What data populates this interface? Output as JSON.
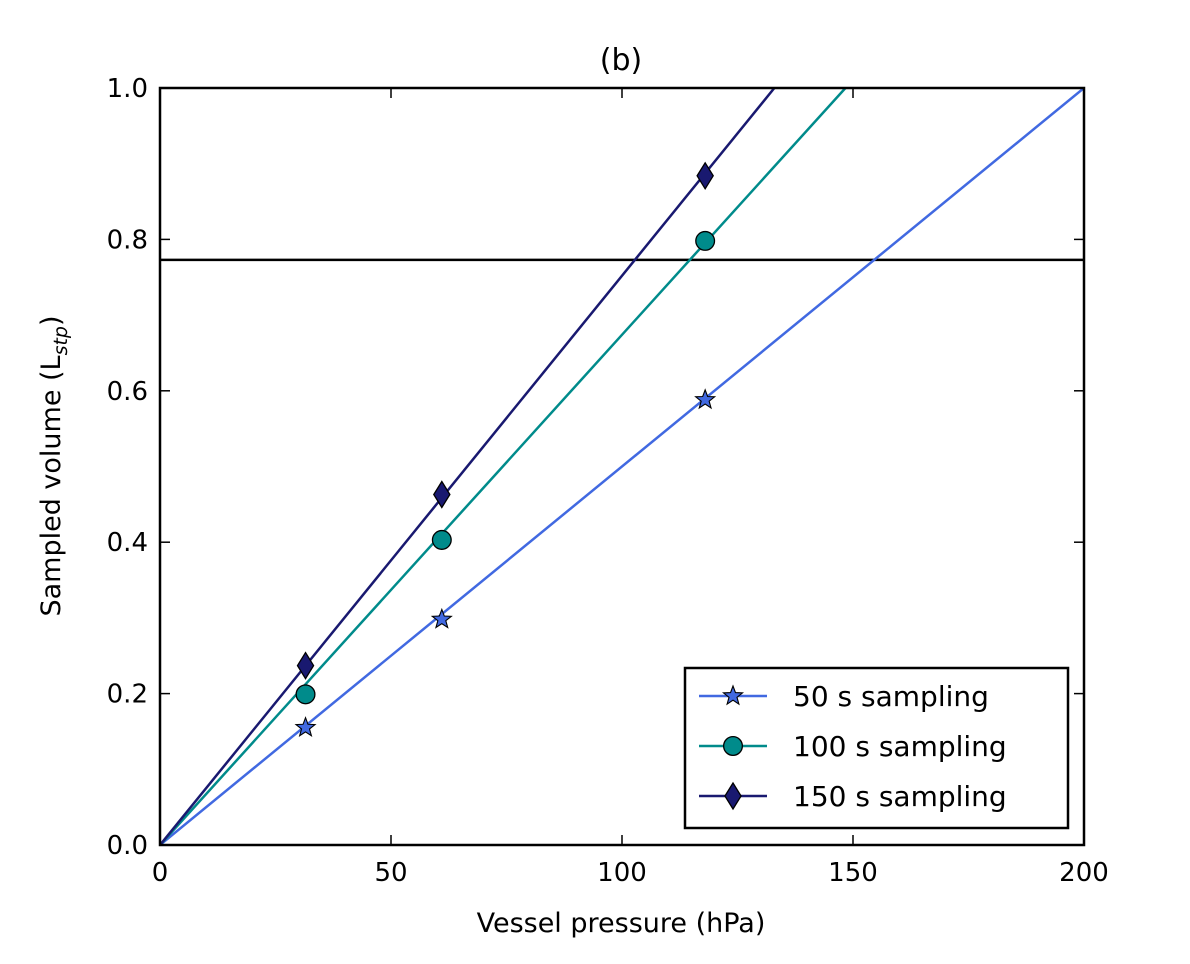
{
  "chart_data": {
    "type": "line",
    "title": "(b)",
    "xlabel": "Vessel pressure (hPa)",
    "ylabel_main": "Sampled volume (L",
    "ylabel_sub": "stp",
    "ylabel_close": ")",
    "xlim": [
      0,
      200
    ],
    "ylim": [
      0,
      1.0
    ],
    "xticks": [
      0,
      50,
      100,
      150,
      200
    ],
    "xtick_labels": [
      "0",
      "50",
      "100",
      "150",
      "200"
    ],
    "yticks": [
      0,
      0.2,
      0.4,
      0.6,
      0.8,
      1.0
    ],
    "ytick_labels": [
      "0.0",
      "0.2",
      "0.4",
      "0.6",
      "0.8",
      "1.0"
    ],
    "grid": false,
    "legend_position": "lower-right",
    "reference_line": {
      "orientation": "horizontal",
      "y": 0.773,
      "color": "#000000"
    },
    "series": [
      {
        "name": "50 s sampling",
        "color": "#4169e1",
        "marker": "star",
        "slope": 0.005,
        "points": [
          [
            31.5,
            0.155
          ],
          [
            61,
            0.298
          ],
          [
            118,
            0.588
          ]
        ]
      },
      {
        "name": "100 s sampling",
        "color": "#008b8b",
        "marker": "circle",
        "slope": 0.00674,
        "points": [
          [
            31.5,
            0.199
          ],
          [
            61,
            0.403
          ],
          [
            118,
            0.798
          ]
        ]
      },
      {
        "name": "150 s sampling",
        "color": "#191970",
        "marker": "diamond",
        "slope": 0.00752,
        "points": [
          [
            31.5,
            0.237
          ],
          [
            61,
            0.463
          ],
          [
            118,
            0.884
          ]
        ]
      }
    ]
  }
}
